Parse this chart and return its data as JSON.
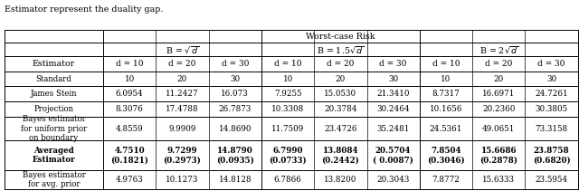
{
  "caption": "Estimator represent the duality gap.",
  "worst_case_label": "Worst-case Risk",
  "b_labels": [
    "B = \\sqrt{d}",
    "B = 1.5\\sqrt{d}",
    "B = 2\\sqrt{d}"
  ],
  "d_labels": [
    "d = 10",
    "d = 20",
    "d = 30"
  ],
  "estimator_label": "Estimator",
  "rows": [
    {
      "name": "Standard",
      "bold": false,
      "vals": [
        "10",
        "20",
        "30",
        "10",
        "20",
        "30",
        "10",
        "20",
        "30"
      ]
    },
    {
      "name": "James Stein",
      "bold": false,
      "vals": [
        "6.0954",
        "11.2427",
        "16.073",
        "7.9255",
        "15.0530",
        "21.3410",
        "8.7317",
        "16.6971",
        "24.7261"
      ]
    },
    {
      "name": "Projection",
      "bold": false,
      "vals": [
        "8.3076",
        "17.4788",
        "26.7873",
        "10.3308",
        "20.3784",
        "30.2464",
        "10.1656",
        "20.2360",
        "30.3805"
      ]
    },
    {
      "name": "Bayes estimator\nfor uniform prior\non boundary",
      "bold": false,
      "vals": [
        "4.8559",
        "9.9909",
        "14.8690",
        "11.7509",
        "23.4726",
        "35.2481",
        "24.5361",
        "49.0651",
        "73.3158"
      ]
    },
    {
      "name": "Averaged\nEstimator",
      "bold": true,
      "vals": [
        "4.7510\n(0.1821)",
        "9.7299\n(0.2973)",
        "14.8790\n(0.0935)",
        "6.7990\n(0.0733)",
        "13.8084\n(0.2442)",
        "20.5704\n( 0.0087)",
        "7.8504\n(0.3046)",
        "15.6686\n(0.2878)",
        "23.8758\n(0.6820)"
      ]
    },
    {
      "name": "Bayes estimator\nfor avg. prior",
      "bold": false,
      "vals": [
        "4.9763",
        "10.1273",
        "14.8128",
        "6.7866",
        "13.8200",
        "20.3043",
        "7.8772",
        "15.6333",
        "23.5954"
      ]
    }
  ],
  "figsize": [
    6.4,
    2.11
  ],
  "dpi": 100
}
